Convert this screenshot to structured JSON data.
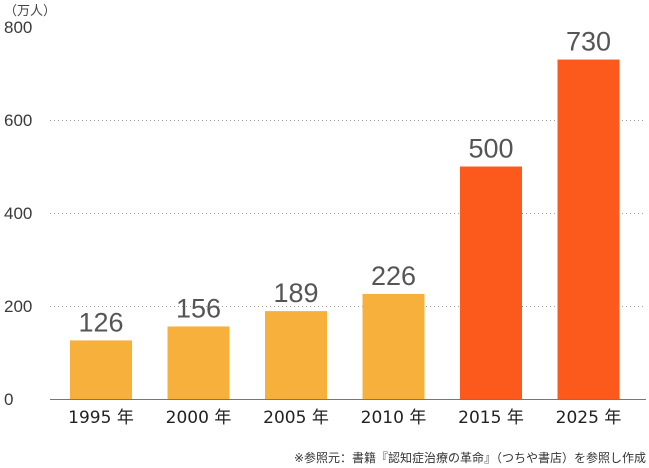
{
  "chart_data": {
    "type": "bar",
    "unit": "（万人）",
    "categories": [
      "1995 年",
      "2000 年",
      "2005 年",
      "2010 年",
      "2015 年",
      "2025 年"
    ],
    "values": [
      126,
      156,
      189,
      226,
      500,
      730
    ],
    "value_labels": [
      "126",
      "156",
      "189",
      "226",
      "500",
      "730"
    ],
    "y_ticks": [
      0,
      200,
      400,
      600,
      800
    ],
    "ylim": [
      0,
      800
    ],
    "grid": true,
    "bar_colors": [
      "#f8b03c",
      "#f8b03c",
      "#f8b03c",
      "#f8b03c",
      "#fb5a1c",
      "#fb5a1c"
    ],
    "source_note": "※参照元：書籍『認知症治療の革命』（つちや書店）を参照し作成"
  }
}
